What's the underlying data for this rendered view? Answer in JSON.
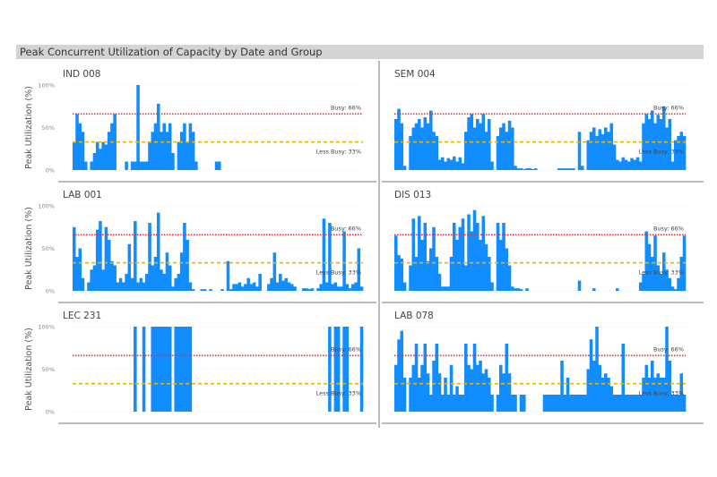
{
  "chart_data": {
    "type": "bar",
    "title": "Peak Concurrent Utilization of Capacity by Date and Group",
    "ylabel": "Peak Utilization (%)",
    "ylim": [
      0,
      100
    ],
    "yticks": [
      "0%",
      "50%",
      "100%"
    ],
    "grid": true,
    "bar_color": "#118DFF",
    "reference_lines": [
      {
        "label": "Busy: 66%",
        "value": 66,
        "color": "#E0303A",
        "style": "dotted"
      },
      {
        "label": "Less Busy: 33%",
        "value": 33,
        "color": "#E8B500",
        "style": "dashed"
      }
    ],
    "panels": [
      {
        "name": "IND 008",
        "values": [
          33,
          66,
          55,
          45,
          10,
          0,
          10,
          20,
          33,
          25,
          33,
          30,
          45,
          55,
          66,
          0,
          0,
          0,
          10,
          0,
          10,
          10,
          100,
          10,
          10,
          10,
          33,
          45,
          55,
          78,
          45,
          55,
          45,
          55,
          20,
          0,
          33,
          45,
          55,
          33,
          55,
          45,
          10,
          0,
          0,
          0,
          0,
          0,
          0,
          10,
          10,
          0,
          0,
          0,
          0,
          0,
          0,
          0,
          0,
          0,
          0,
          0,
          0,
          0,
          0,
          0,
          0,
          0,
          0,
          0,
          0,
          0,
          0,
          0,
          0,
          0,
          0,
          0,
          0,
          0,
          0,
          0,
          0,
          0,
          0,
          0,
          0,
          0,
          0,
          0,
          0,
          0,
          0,
          0,
          0,
          0,
          0,
          0,
          0,
          0
        ]
      },
      {
        "name": "SEM 004",
        "values": [
          60,
          72,
          55,
          5,
          0,
          40,
          50,
          55,
          60,
          50,
          62,
          55,
          70,
          45,
          40,
          12,
          15,
          10,
          14,
          12,
          16,
          10,
          15,
          8,
          45,
          62,
          66,
          50,
          60,
          55,
          66,
          45,
          60,
          10,
          0,
          40,
          50,
          55,
          45,
          58,
          50,
          5,
          2,
          2,
          1,
          2,
          2,
          1,
          2,
          0,
          0,
          0,
          0,
          0,
          0,
          0,
          2,
          2,
          2,
          2,
          2,
          2,
          0,
          45,
          5,
          0,
          35,
          45,
          50,
          40,
          48,
          42,
          50,
          45,
          55,
          30,
          12,
          10,
          15,
          12,
          10,
          14,
          12,
          15,
          10,
          55,
          66,
          60,
          70,
          55,
          65,
          60,
          75,
          50,
          60,
          10,
          35,
          40,
          45,
          40
        ]
      },
      {
        "name": "LAB 001",
        "values": [
          75,
          40,
          50,
          15,
          0,
          10,
          25,
          30,
          72,
          82,
          25,
          75,
          60,
          35,
          30,
          10,
          15,
          10,
          20,
          55,
          15,
          82,
          10,
          15,
          10,
          20,
          80,
          30,
          40,
          92,
          25,
          20,
          45,
          30,
          5,
          15,
          20,
          45,
          80,
          60,
          10,
          2,
          0,
          0,
          2,
          2,
          0,
          2,
          0,
          0,
          0,
          2,
          0,
          35,
          2,
          8,
          8,
          10,
          5,
          8,
          15,
          8,
          10,
          5,
          20,
          0,
          0,
          8,
          15,
          45,
          10,
          20,
          12,
          15,
          10,
          8,
          5,
          0,
          0,
          3,
          3,
          2,
          3,
          0,
          3,
          8,
          85,
          10,
          80,
          8,
          10,
          5,
          5,
          70,
          8,
          3,
          8,
          10,
          50,
          5
        ]
      },
      {
        "name": "DIS 013",
        "values": [
          65,
          42,
          38,
          10,
          0,
          30,
          85,
          40,
          88,
          60,
          80,
          35,
          50,
          75,
          40,
          20,
          5,
          5,
          5,
          40,
          80,
          60,
          75,
          85,
          30,
          90,
          70,
          95,
          80,
          60,
          88,
          55,
          40,
          10,
          0,
          80,
          60,
          80,
          50,
          30,
          5,
          3,
          3,
          2,
          0,
          3,
          0,
          0,
          0,
          0,
          0,
          0,
          0,
          0,
          0,
          0,
          0,
          0,
          0,
          0,
          0,
          0,
          0,
          12,
          0,
          0,
          0,
          0,
          3,
          0,
          0,
          0,
          0,
          0,
          0,
          0,
          3,
          0,
          0,
          0,
          0,
          0,
          0,
          0,
          10,
          20,
          70,
          55,
          40,
          65,
          30,
          20,
          45,
          25,
          15,
          5,
          2,
          15,
          40,
          65
        ]
      },
      {
        "name": "LEC 231",
        "values": [
          0,
          0,
          0,
          0,
          0,
          0,
          0,
          0,
          0,
          0,
          0,
          0,
          0,
          0,
          0,
          0,
          0,
          0,
          0,
          0,
          0,
          100,
          0,
          0,
          100,
          0,
          0,
          100,
          100,
          100,
          100,
          100,
          100,
          100,
          0,
          100,
          100,
          100,
          100,
          100,
          100,
          0,
          0,
          0,
          0,
          0,
          0,
          0,
          0,
          0,
          0,
          0,
          0,
          0,
          0,
          0,
          0,
          0,
          0,
          0,
          0,
          0,
          0,
          0,
          0,
          0,
          0,
          0,
          0,
          0,
          0,
          0,
          0,
          0,
          0,
          0,
          0,
          0,
          0,
          0,
          0,
          0,
          0,
          0,
          0,
          0,
          0,
          0,
          100,
          0,
          100,
          100,
          0,
          100,
          100,
          0,
          0,
          0,
          0,
          100
        ]
      },
      {
        "name": "LAB 078",
        "values": [
          55,
          85,
          95,
          40,
          0,
          40,
          55,
          80,
          40,
          55,
          80,
          45,
          20,
          60,
          80,
          45,
          20,
          40,
          20,
          55,
          20,
          30,
          20,
          20,
          80,
          55,
          50,
          80,
          55,
          60,
          45,
          50,
          40,
          20,
          0,
          20,
          55,
          45,
          80,
          45,
          20,
          20,
          0,
          20,
          20,
          0,
          0,
          0,
          0,
          0,
          0,
          20,
          20,
          20,
          20,
          20,
          20,
          60,
          20,
          40,
          20,
          20,
          20,
          20,
          20,
          20,
          50,
          85,
          60,
          100,
          55,
          40,
          45,
          40,
          30,
          20,
          20,
          20,
          80,
          20,
          20,
          20,
          20,
          20,
          20,
          40,
          55,
          40,
          60,
          40,
          45,
          40,
          40,
          100,
          60,
          20,
          20,
          20,
          45,
          20
        ]
      }
    ]
  }
}
